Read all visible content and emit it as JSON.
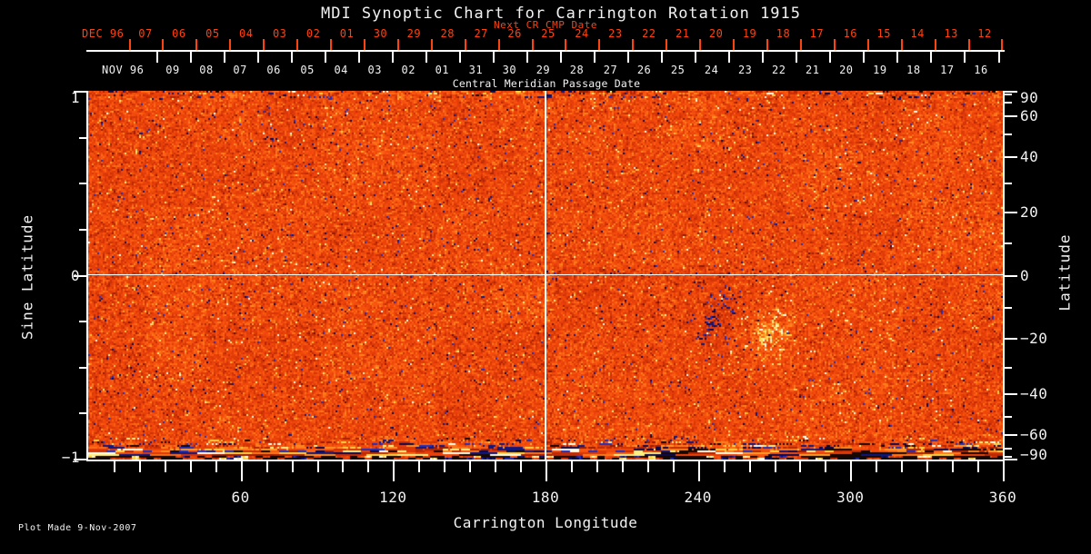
{
  "title": "MDI Synoptic Chart for Carrington Rotation 1915",
  "plot_made": "Plot Made  9-Nov-2007",
  "colors": {
    "background": "#000000",
    "frame": "#ffffff",
    "text": "#f2f2f2",
    "next_cr_date_color": "#ff420e"
  },
  "top_axis": {
    "next_cr_label": "Next CR CMP Date",
    "next_cr_month": "DEC 96",
    "next_cr_days": [
      "07",
      "06",
      "05",
      "04",
      "03",
      "02",
      "01",
      "30",
      "29",
      "28",
      "27",
      "26",
      "25",
      "24",
      "23",
      "22",
      "21",
      "20",
      "19",
      "18",
      "17",
      "16",
      "15",
      "14",
      "13",
      "12"
    ],
    "cmp_month": "NOV 96",
    "cmp_days": [
      "09",
      "08",
      "07",
      "06",
      "05",
      "04",
      "03",
      "02",
      "01",
      "31",
      "30",
      "29",
      "28",
      "27",
      "26",
      "25",
      "24",
      "23",
      "22",
      "21",
      "20",
      "19",
      "18",
      "17",
      "16"
    ],
    "cmp_axis_label": "Central Meridian Passage Date"
  },
  "chart_data": {
    "type": "heatmap",
    "title": "MDI Synoptic Chart for Carrington Rotation 1915",
    "xlabel": "Carrington Longitude",
    "ylabel_left": "Sine Latitude",
    "ylabel_right": "Latitude",
    "xlim": [
      0,
      360
    ],
    "ylim_sine_latitude": [
      -1,
      1
    ],
    "x_major_ticks": [
      60,
      120,
      180,
      240,
      300,
      360
    ],
    "x_minor_step_deg": 10,
    "sine_latitude_labeled_ticks": [
      1,
      0,
      -1
    ],
    "sine_latitude_minor_step": 0.25,
    "latitude_labeled_ticks": [
      90,
      60,
      40,
      20,
      0,
      -20,
      -40,
      -60,
      -90
    ],
    "latitude_minor_step_deg": 10,
    "reference_lines": {
      "longitude": 180,
      "sine_latitude": 0
    },
    "field": {
      "description": "Line-of-sight photospheric magnetic field synoptic map: mottled orange-red salt-and-pepper background with scattered dark-blue and bright speckles, a bipolar active region south of the equator near 250 degrees longitude (dark negative cluster leading, bright positive cluster trailing), and streaky poorly-observed data bands at the north and especially south map edges",
      "base_hex": "#ee4410",
      "negative_speckle_hex": [
        "#101880",
        "#2030c0",
        "#0a0a50"
      ],
      "positive_speckle_hex": [
        "#ffffe8",
        "#ffee80",
        "#ffd040"
      ],
      "active_region": {
        "negative_polarity": {
          "longitude": 248,
          "sine_latitude": -0.26
        },
        "positive_polarity": {
          "longitude": 268,
          "sine_latitude": -0.3
        },
        "longitude_span": [
          228,
          288
        ],
        "sine_latitude_span": [
          -0.55,
          -0.05
        ]
      },
      "south_edge_streaks": true,
      "north_edge_streaks": true,
      "seed": 1915
    }
  }
}
